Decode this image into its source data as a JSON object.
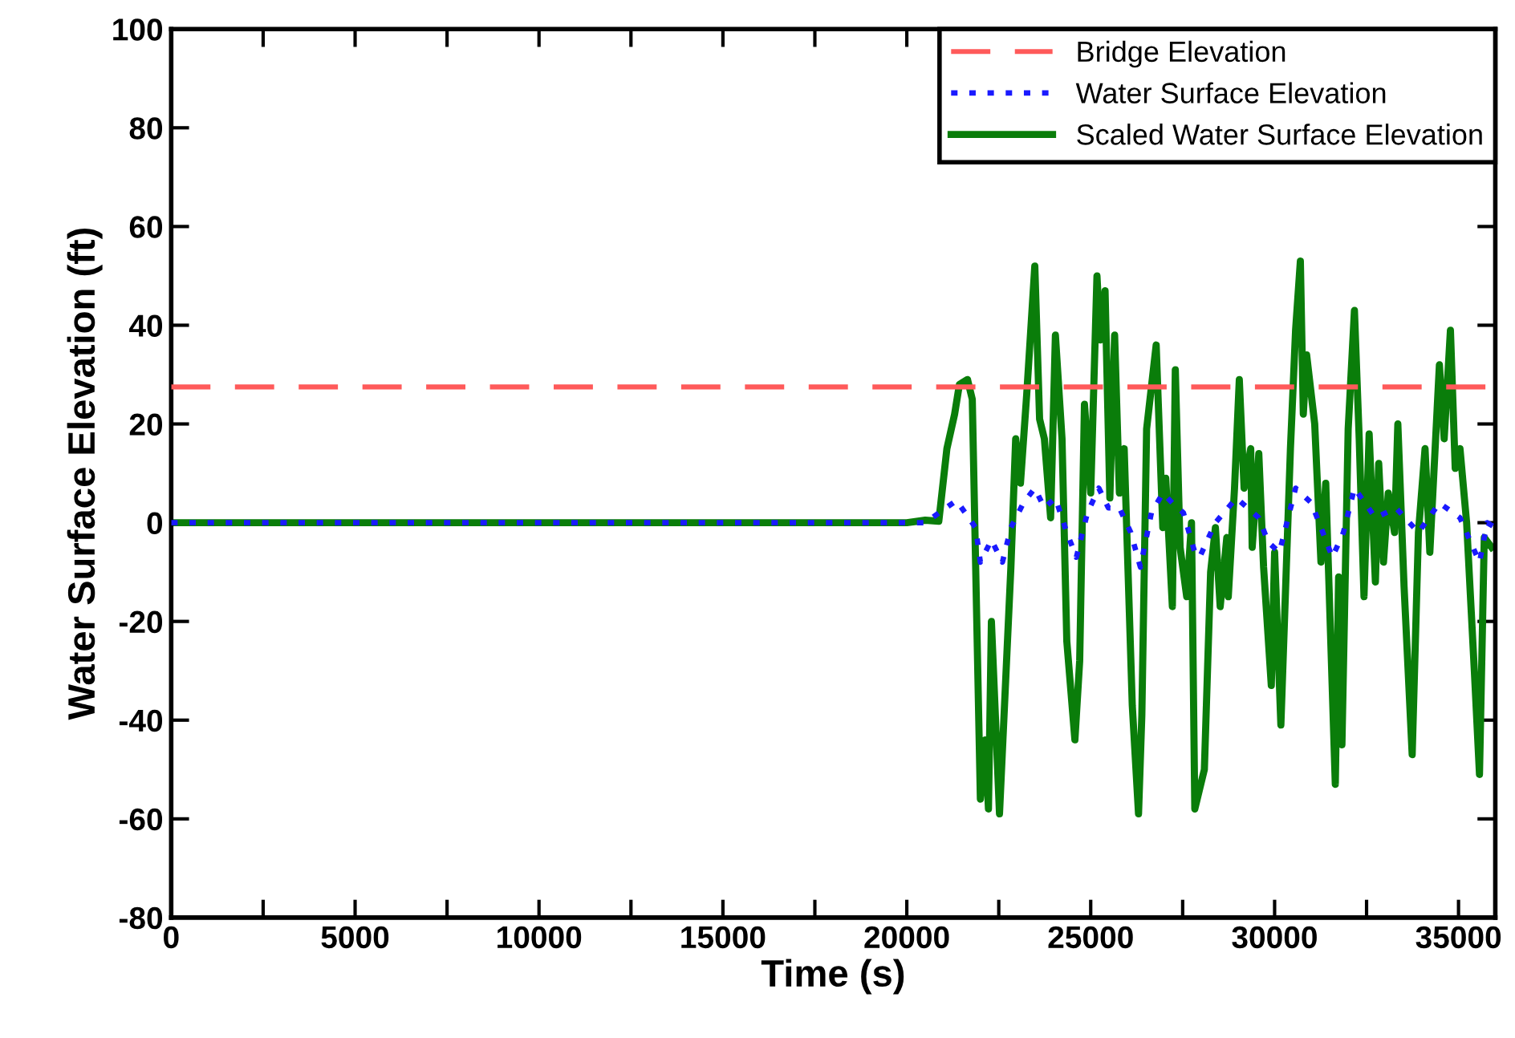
{
  "chart_data": {
    "type": "line",
    "xlabel": "Time (s)",
    "ylabel": "Water Surface Elevation (ft)",
    "xlim": [
      0,
      36000
    ],
    "ylim": [
      -80,
      100
    ],
    "xticks": [
      0,
      {
        "value": 2500,
        "label": null
      },
      5000,
      {
        "value": 7500,
        "label": null
      },
      10000,
      {
        "value": 12500,
        "label": null
      },
      15000,
      {
        "value": 17500,
        "label": null
      },
      20000,
      {
        "value": 22500,
        "label": null
      },
      25000,
      {
        "value": 27500,
        "label": null
      },
      30000,
      {
        "value": 32500,
        "label": null
      },
      35000
    ],
    "yticks": [
      -80,
      -60,
      -40,
      -20,
      0,
      20,
      40,
      60,
      80,
      100
    ],
    "grid": false,
    "legend": "top right",
    "series": [
      {
        "name": "Bridge Elevation",
        "color": "#ff5a5a",
        "line_style": "dashed",
        "x": [
          0,
          36000
        ],
        "values": [
          27.5,
          27.5
        ]
      },
      {
        "name": "Water Surface Elevation",
        "color": "#1a1aff",
        "line_style": "dotted",
        "x": [
          0,
          20500,
          21350,
          21870,
          22000,
          22300,
          22600,
          22830,
          23170,
          23480,
          23740,
          24040,
          24350,
          24610,
          24910,
          25220,
          25480,
          25780,
          26090,
          26350,
          26650,
          26960,
          27220,
          27520,
          27830,
          27960,
          28390,
          28960,
          29570,
          29830,
          30130,
          30570,
          31000,
          31570,
          31870,
          32170,
          32740,
          33300,
          33910,
          34480,
          35040,
          35570,
          35780,
          36000
        ],
        "values": [
          0,
          0,
          4.5,
          -1,
          -8,
          -3.5,
          -8,
          -1,
          4,
          7,
          3,
          5,
          -2,
          -7,
          2,
          7,
          3,
          3,
          -2,
          -9,
          2,
          6,
          4,
          2,
          -6,
          -7,
          0,
          5,
          1,
          -4,
          -6,
          7,
          4,
          -7,
          -2,
          7,
          1,
          3,
          -2,
          4,
          1,
          -8,
          0,
          -1
        ]
      },
      {
        "name": "Scaled Water Surface Elevation",
        "color": "#0a7d0a",
        "line_style": "solid",
        "x": [
          0,
          20000,
          20500,
          20870,
          21090,
          21300,
          21430,
          21650,
          21780,
          22000,
          22130,
          22220,
          22300,
          22520,
          22650,
          22830,
          22960,
          23090,
          23260,
          23480,
          23610,
          23740,
          23910,
          24040,
          24220,
          24350,
          24570,
          24700,
          24830,
          25000,
          25170,
          25260,
          25390,
          25520,
          25650,
          25780,
          25910,
          26130,
          26300,
          26390,
          26520,
          26780,
          26960,
          27040,
          27220,
          27300,
          27430,
          27610,
          27740,
          27830,
          28090,
          28260,
          28390,
          28520,
          28700,
          28740,
          28910,
          29040,
          29170,
          29350,
          29390,
          29570,
          29700,
          29910,
          30000,
          30170,
          30430,
          30570,
          30700,
          30780,
          30870,
          31090,
          31260,
          31390,
          31650,
          31740,
          31830,
          32000,
          32170,
          32300,
          32430,
          32570,
          32740,
          32830,
          32960,
          33090,
          33260,
          33350,
          33520,
          33740,
          33910,
          34090,
          34220,
          34480,
          34610,
          34780,
          34910,
          35040,
          35220,
          35430,
          35570,
          35700,
          35900
        ],
        "values": [
          0,
          0,
          0.5,
          0.3,
          15,
          22,
          28,
          29,
          25,
          -56,
          -44,
          -58,
          -20,
          -59,
          -38,
          -9,
          17,
          8,
          26,
          52,
          21,
          17,
          1,
          38,
          17,
          -24,
          -44,
          -28,
          24,
          6,
          50,
          37,
          47,
          5,
          38,
          6,
          15,
          -37,
          -59,
          -39,
          19,
          36,
          -1,
          9,
          -17,
          31,
          -5,
          -15,
          0,
          -58,
          -50,
          -10,
          -1,
          -17,
          -3,
          -15,
          7,
          29,
          7,
          15,
          -5,
          14,
          -9,
          -33,
          -6,
          -41,
          15,
          39,
          53,
          22,
          34,
          20,
          -8,
          8,
          -53,
          -11,
          -45,
          19,
          43,
          17,
          -15,
          18,
          -12,
          12,
          -8,
          6,
          -2,
          20,
          -13,
          -47,
          -2,
          15,
          -6,
          32,
          17,
          39,
          11,
          15,
          0,
          -30,
          -51,
          -3,
          -5
        ]
      }
    ]
  }
}
